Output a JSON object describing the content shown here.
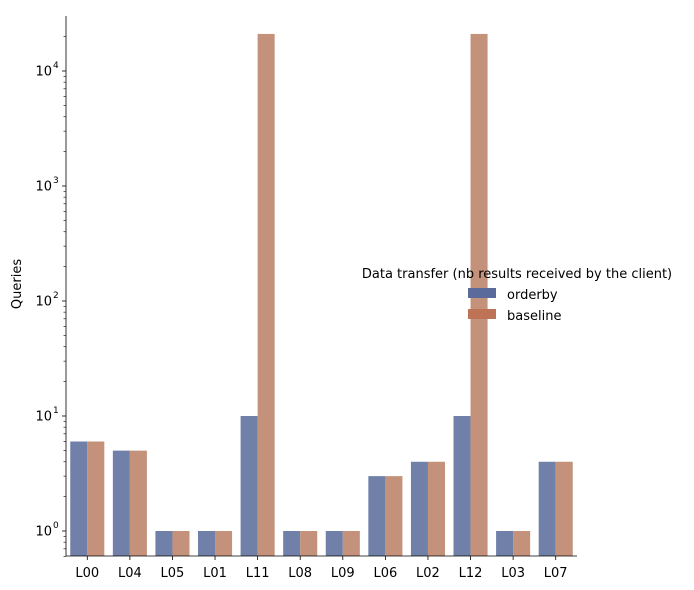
{
  "chart_data": {
    "type": "bar",
    "title": "",
    "xlabel": "",
    "ylabel": "Queries",
    "yscale": "log",
    "ylim": [
      0.6,
      23000
    ],
    "categories": [
      "L00",
      "L04",
      "L05",
      "L01",
      "L11",
      "L08",
      "L09",
      "L06",
      "L02",
      "L12",
      "L03",
      "L07"
    ],
    "series": [
      {
        "name": "orderby",
        "color": "#7080a8",
        "values": [
          6,
          5,
          1,
          1,
          10,
          1,
          1,
          3,
          4,
          10,
          1,
          4
        ]
      },
      {
        "name": "baseline",
        "color": "#c4917a",
        "values": [
          6,
          5,
          1,
          1,
          21000,
          1,
          1,
          3,
          4,
          21000,
          1,
          4
        ]
      }
    ],
    "yticks": [
      {
        "value": 1,
        "base": "10",
        "exp": "0"
      },
      {
        "value": 10,
        "base": "10",
        "exp": "1"
      },
      {
        "value": 100,
        "base": "10",
        "exp": "2"
      },
      {
        "value": 1000,
        "base": "10",
        "exp": "3"
      },
      {
        "value": 10000,
        "base": "10",
        "exp": "4"
      }
    ],
    "legend": {
      "title": "Data transfer (nb results received by the client)",
      "placement": "right",
      "entries": [
        {
          "label": "orderby",
          "color": "#5a6a9a"
        },
        {
          "label": "baseline",
          "color": "#bf7356"
        }
      ]
    }
  }
}
